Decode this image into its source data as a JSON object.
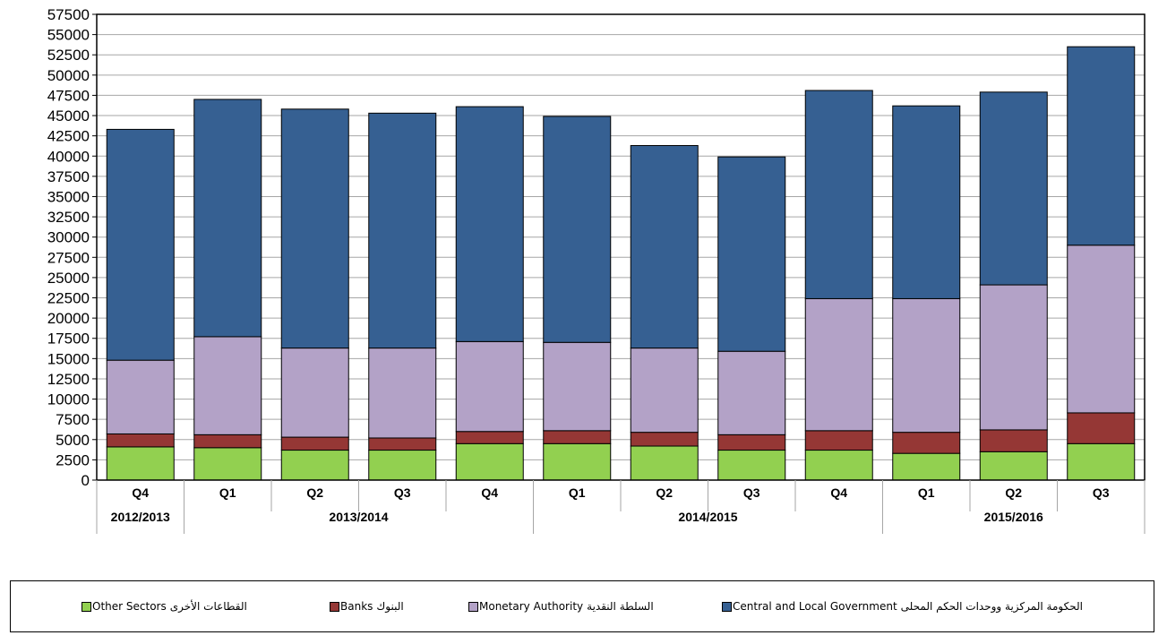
{
  "chart_data": {
    "type": "bar",
    "stacked": true,
    "categories": [
      "Q4",
      "Q1",
      "Q2",
      "Q3",
      "Q4",
      "Q1",
      "Q2",
      "Q3",
      "Q4",
      "Q1",
      "Q2",
      "Q3"
    ],
    "groups": [
      {
        "label": "2012/2013",
        "span": 1
      },
      {
        "label": "2013/2014",
        "span": 4
      },
      {
        "label": "2014/2015",
        "span": 4
      },
      {
        "label": "2015/2016",
        "span": 3
      }
    ],
    "series": [
      {
        "name": "Other Sectors",
        "name_ar": "القطاعات الأخرى",
        "color": "#92d050",
        "values": [
          4100,
          4000,
          3700,
          3700,
          4500,
          4500,
          4200,
          3700,
          3700,
          3300,
          3500,
          4500
        ]
      },
      {
        "name": "Banks",
        "name_ar": "البنوك",
        "color": "#953735",
        "values": [
          1600,
          1600,
          1600,
          1500,
          1500,
          1600,
          1700,
          1900,
          2400,
          2600,
          2700,
          3800
        ]
      },
      {
        "name": "Monetary Authority",
        "name_ar": "السلطة النقدية",
        "color": "#b3a2c7",
        "values": [
          9100,
          12100,
          11000,
          11100,
          11100,
          10900,
          10400,
          10300,
          16300,
          16500,
          17900,
          20700
        ]
      },
      {
        "name": "Central and Local Government",
        "name_ar": "الحكومة  المركزية ووحدات الحكم المحلى",
        "color": "#366092",
        "values": [
          28500,
          29300,
          29500,
          29000,
          29000,
          27900,
          25000,
          24000,
          25700,
          23800,
          23800,
          24500
        ]
      }
    ],
    "yticks": [
      0,
      2500,
      5000,
      7500,
      10000,
      12500,
      15000,
      17500,
      20000,
      22500,
      25000,
      27500,
      30000,
      32500,
      35000,
      37500,
      40000,
      42500,
      45000,
      47500,
      50000,
      52500,
      55000,
      57500
    ],
    "ylim": [
      0,
      57500
    ],
    "grid": true,
    "legend_position": "bottom",
    "title": "",
    "xlabel": "",
    "ylabel": ""
  },
  "legend": {
    "items": [
      {
        "en": "Other Sectors",
        "ar": "القطاعات الأخرى",
        "color": "#92d050"
      },
      {
        "en": "Banks",
        "ar": "البنوك",
        "color": "#953735"
      },
      {
        "en": "Monetary Authority",
        "ar": "السلطة النقدية",
        "color": "#b3a2c7"
      },
      {
        "en": "Central and Local Government",
        "ar": "الحكومة  المركزية ووحدات الحكم المحلى",
        "color": "#366092"
      }
    ]
  }
}
